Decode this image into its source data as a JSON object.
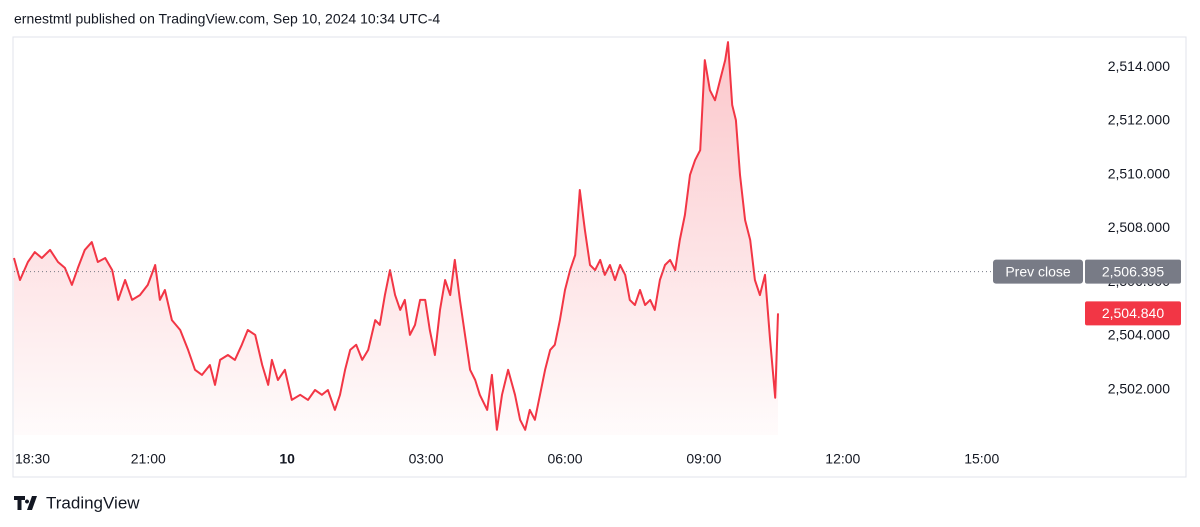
{
  "header": "ernestmtl published on TradingView.com, Sep 10, 2024 10:34 UTC-4",
  "footer": {
    "brand": "TradingView"
  },
  "chart_data": {
    "type": "line",
    "color": "#f23645",
    "area": true,
    "grid": false,
    "x": [
      18.1,
      18.23,
      18.4,
      18.55,
      18.7,
      18.88,
      19.05,
      19.2,
      19.35,
      19.48,
      19.63,
      19.78,
      19.91,
      20.07,
      20.22,
      20.35,
      20.5,
      20.65,
      20.82,
      20.99,
      21.15,
      21.25,
      21.36,
      21.51,
      21.69,
      21.86,
      22.01,
      22.16,
      22.33,
      22.44,
      22.55,
      22.72,
      22.87,
      23.02,
      23.15,
      23.31,
      23.46,
      23.59,
      23.67,
      23.8,
      23.95,
      24.1,
      24.28,
      24.45,
      24.6,
      24.75,
      24.88,
      25.03,
      25.14,
      25.25,
      25.36,
      25.49,
      25.62,
      25.75,
      25.9,
      26.0,
      26.11,
      26.22,
      26.33,
      26.44,
      26.54,
      26.65,
      26.76,
      26.87,
      26.98,
      27.08,
      27.19,
      27.3,
      27.41,
      27.52,
      27.62,
      27.73,
      27.84,
      27.95,
      28.06,
      28.16,
      28.32,
      28.42,
      28.53,
      28.64,
      28.77,
      28.92,
      29.03,
      29.14,
      29.24,
      29.35,
      29.46,
      29.57,
      29.68,
      29.78,
      29.89,
      30.0,
      30.11,
      30.22,
      30.32,
      30.43,
      30.54,
      30.65,
      30.76,
      30.86,
      30.97,
      31.08,
      31.19,
      31.3,
      31.4,
      31.51,
      31.62,
      31.73,
      31.84,
      31.94,
      32.05,
      32.16,
      32.27,
      32.38,
      32.48,
      32.59,
      32.7,
      32.81,
      32.92,
      33.02,
      33.13,
      33.24,
      33.35,
      33.46,
      33.52,
      33.61,
      33.69,
      33.78,
      33.89,
      34.0,
      34.1,
      34.21,
      34.32,
      34.43,
      34.54,
      34.6
    ],
    "values": [
      2506.9,
      2506.08,
      2506.75,
      2507.12,
      2506.9,
      2507.2,
      2506.75,
      2506.53,
      2505.9,
      2506.53,
      2507.2,
      2507.49,
      2506.75,
      2506.9,
      2506.45,
      2505.34,
      2506.08,
      2505.34,
      2505.52,
      2505.9,
      2506.64,
      2505.34,
      2505.71,
      2504.59,
      2504.22,
      2503.48,
      2502.74,
      2502.55,
      2502.92,
      2502.18,
      2503.11,
      2503.29,
      2503.11,
      2503.67,
      2504.22,
      2504.04,
      2502.92,
      2502.18,
      2503.11,
      2502.36,
      2502.74,
      2501.62,
      2501.81,
      2501.62,
      2501.99,
      2501.81,
      2501.99,
      2501.25,
      2501.81,
      2502.74,
      2503.48,
      2503.67,
      2503.11,
      2503.48,
      2504.59,
      2504.41,
      2505.52,
      2506.45,
      2505.52,
      2504.97,
      2505.34,
      2504.04,
      2504.41,
      2505.34,
      2505.34,
      2504.22,
      2503.29,
      2504.97,
      2506.08,
      2505.52,
      2506.83,
      2505.34,
      2504.04,
      2502.74,
      2502.36,
      2501.81,
      2501.25,
      2502.55,
      2500.51,
      2501.81,
      2502.74,
      2501.81,
      2500.88,
      2500.51,
      2501.25,
      2500.88,
      2501.81,
      2502.74,
      2503.48,
      2503.67,
      2504.59,
      2505.71,
      2506.45,
      2507.01,
      2509.43,
      2507.94,
      2506.64,
      2506.45,
      2506.83,
      2506.27,
      2506.64,
      2506.08,
      2506.64,
      2506.27,
      2505.34,
      2505.15,
      2505.71,
      2505.15,
      2505.34,
      2504.97,
      2506.08,
      2506.64,
      2506.83,
      2506.45,
      2507.57,
      2508.5,
      2509.99,
      2510.54,
      2510.91,
      2514.26,
      2513.14,
      2512.77,
      2513.52,
      2514.26,
      2514.93,
      2512.59,
      2512.03,
      2509.99,
      2508.31,
      2507.57,
      2506.08,
      2505.52,
      2506.27,
      2503.85,
      2501.7,
      2504.84
    ],
    "xlim": [
      18.1,
      41.23
    ],
    "ylim": [
      2500.13,
      2515.12
    ],
    "xticks": [
      {
        "value": 18.5,
        "label": "18:30"
      },
      {
        "value": 21,
        "label": "21:00"
      },
      {
        "value": 24,
        "label": "10"
      },
      {
        "value": 27,
        "label": "03:00"
      },
      {
        "value": 30,
        "label": "06:00"
      },
      {
        "value": 33,
        "label": "09:00"
      },
      {
        "value": 36,
        "label": "12:00"
      },
      {
        "value": 39,
        "label": "15:00"
      }
    ],
    "yticks": [
      {
        "value": 2502,
        "label": "2,502.000"
      },
      {
        "value": 2504,
        "label": "2,504.000"
      },
      {
        "value": 2506,
        "label": "2,506.000"
      },
      {
        "value": 2508,
        "label": "2,508.000"
      },
      {
        "value": 2510,
        "label": "2,510.000"
      },
      {
        "value": 2512,
        "label": "2,512.000"
      },
      {
        "value": 2514,
        "label": "2,514.000"
      }
    ],
    "reference_line": {
      "label": "Prev close",
      "value": 2506.395,
      "value_label": "2,506.395",
      "color": "#787b86"
    },
    "last_value": {
      "value": 2504.84,
      "value_label": "2,504.840"
    }
  }
}
